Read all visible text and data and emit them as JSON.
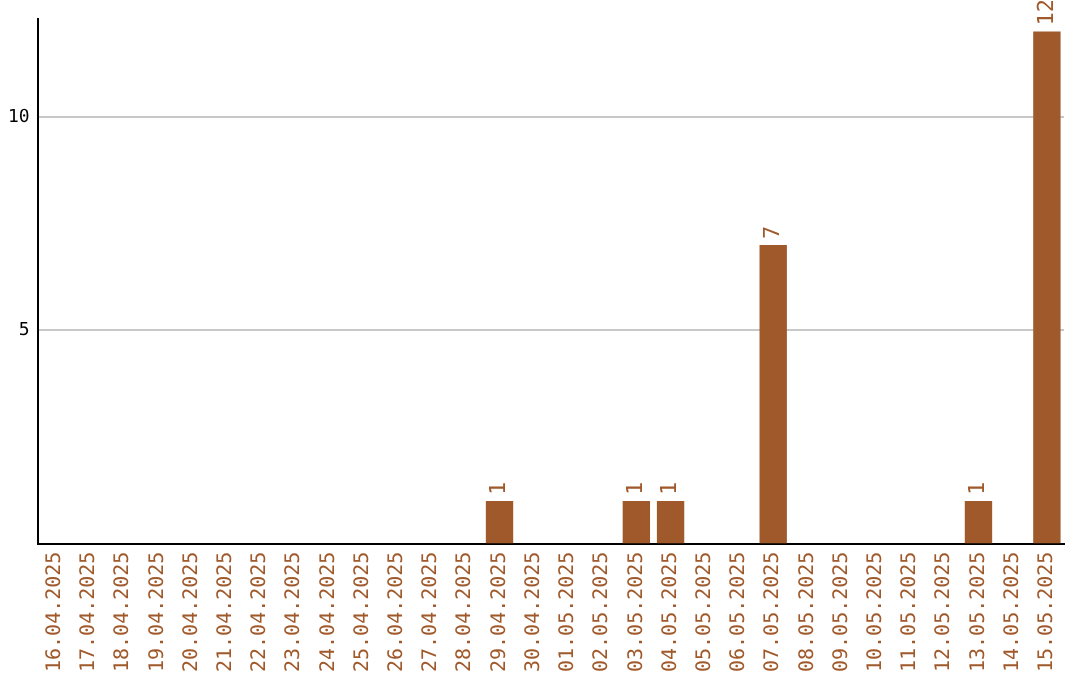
{
  "chart_data": {
    "type": "bar",
    "categories": [
      "16.04.2025",
      "17.04.2025",
      "18.04.2025",
      "19.04.2025",
      "20.04.2025",
      "21.04.2025",
      "22.04.2025",
      "23.04.2025",
      "24.04.2025",
      "25.04.2025",
      "26.04.2025",
      "27.04.2025",
      "28.04.2025",
      "29.04.2025",
      "30.04.2025",
      "01.05.2025",
      "02.05.2025",
      "03.05.2025",
      "04.05.2025",
      "05.05.2025",
      "06.05.2025",
      "07.05.2025",
      "08.05.2025",
      "09.05.2025",
      "10.05.2025",
      "11.05.2025",
      "12.05.2025",
      "13.05.2025",
      "14.05.2025",
      "15.05.2025"
    ],
    "values": [
      0,
      0,
      0,
      0,
      0,
      0,
      0,
      0,
      0,
      0,
      0,
      0,
      0,
      1,
      0,
      0,
      0,
      1,
      1,
      0,
      0,
      7,
      0,
      0,
      0,
      0,
      0,
      1,
      0,
      12
    ],
    "value_labels": [
      null,
      null,
      null,
      null,
      null,
      null,
      null,
      null,
      null,
      null,
      null,
      null,
      null,
      "1",
      null,
      null,
      null,
      "1",
      "1",
      null,
      null,
      "7",
      null,
      null,
      null,
      null,
      null,
      "1",
      null,
      "12"
    ],
    "color": "#a0592b",
    "ylim": [
      0,
      12.3
    ],
    "yticks": [
      5,
      10
    ],
    "grid": "y",
    "legend": false
  }
}
